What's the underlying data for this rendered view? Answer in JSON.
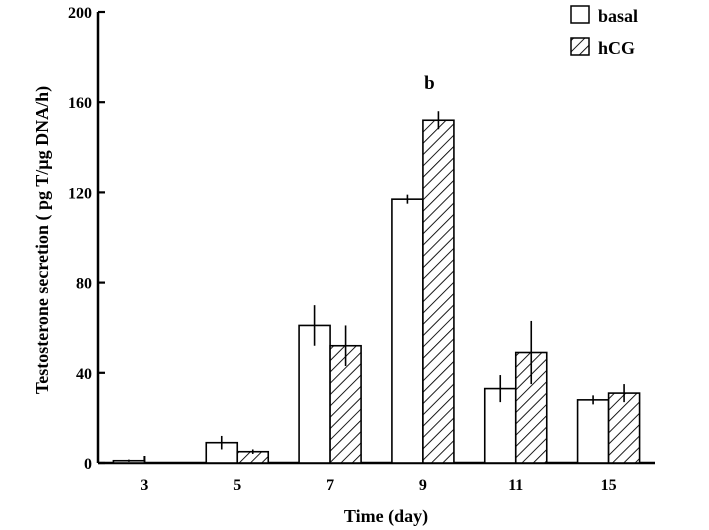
{
  "chart_data": {
    "type": "bar",
    "title": "",
    "xlabel": "Time (day)",
    "ylabel": "Testosterone secretion ( pg T/µg DNA/h)",
    "categories": [
      "3",
      "5",
      "7",
      "9",
      "11",
      "15"
    ],
    "series": [
      {
        "name": "basal",
        "values": [
          1,
          9,
          61,
          117,
          33,
          28
        ],
        "errors": [
          0.5,
          3,
          9,
          2,
          6,
          2
        ],
        "pattern": "white"
      },
      {
        "name": "hCG",
        "values": [
          0,
          5,
          52,
          152,
          49,
          31
        ],
        "errors": [
          0,
          1,
          9,
          4,
          14,
          4
        ],
        "pattern": "hatched"
      }
    ],
    "ylim": [
      0,
      200
    ],
    "yticks": [
      "0",
      "40",
      "80",
      "120",
      "160",
      "200"
    ],
    "grid": false,
    "legend_position": "top-right",
    "annotations": [
      {
        "text": "b",
        "category": "9",
        "series": "hCG"
      }
    ]
  }
}
